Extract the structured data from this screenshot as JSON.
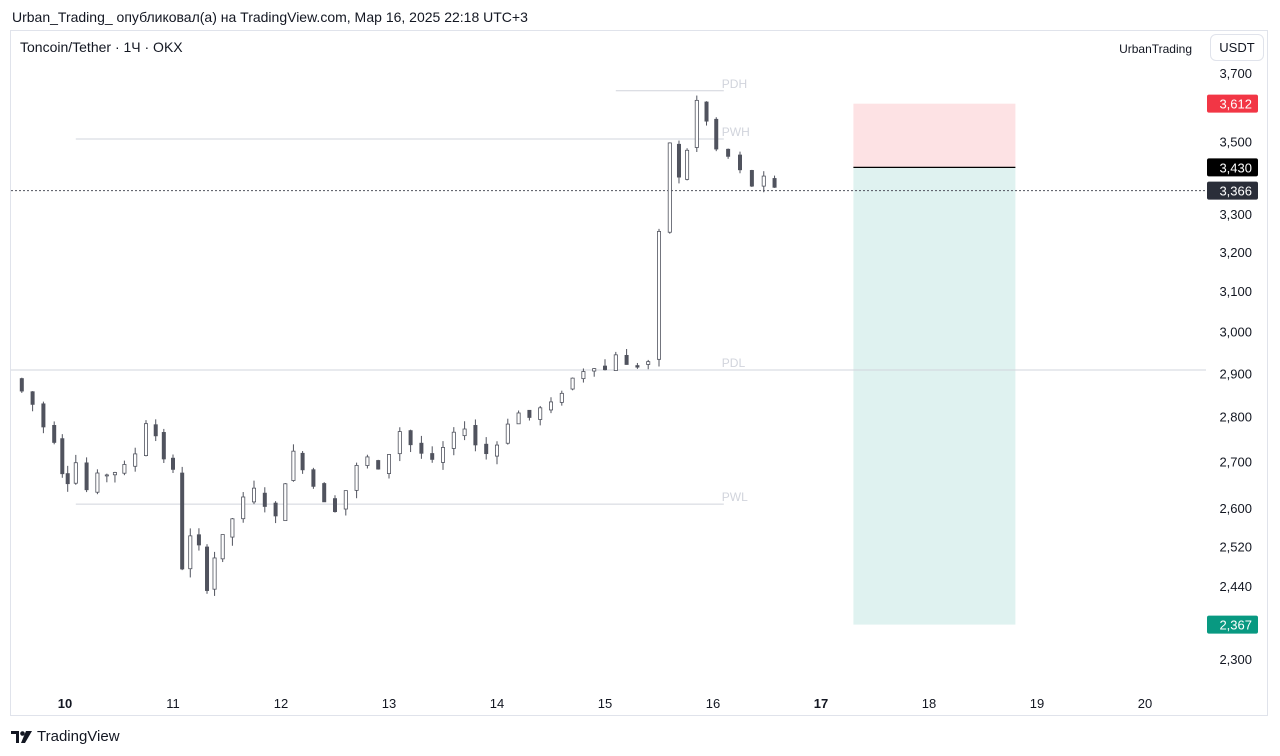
{
  "header": {
    "published_by": "Urban_Trading_ опубликовал(а) на TradingView.com, Мар 16, 2025 22:18 UTC+3"
  },
  "symbol": {
    "title": "Toncoin/Tether · 1Ч · OKX"
  },
  "author_label": "UrbanTrading",
  "currency_button": "USDT",
  "footer": {
    "brand": "TradingView"
  },
  "colors": {
    "stop_zone": "#fde2e4",
    "target_zone": "#dff2f0",
    "stop_tag": "#f23645",
    "target_tag": "#089981",
    "entry_tag": "#000000",
    "price_tag": "#2a2e39",
    "candle": "#50535e"
  },
  "chart_data": {
    "type": "candlestick",
    "title": "Toncoin/Tether · 1Ч · OKX",
    "y_axis": {
      "ticks": [
        {
          "label": "3,700",
          "value": 3700
        },
        {
          "label": "3,500",
          "value": 3500
        },
        {
          "label": "3,300",
          "value": 3300
        },
        {
          "label": "3,200",
          "value": 3200
        },
        {
          "label": "3,100",
          "value": 3100
        },
        {
          "label": "3,000",
          "value": 3000
        },
        {
          "label": "2,900",
          "value": 2900
        },
        {
          "label": "2,800",
          "value": 2800
        },
        {
          "label": "2,700",
          "value": 2700
        },
        {
          "label": "2,600",
          "value": 2600
        },
        {
          "label": "2,520",
          "value": 2520
        },
        {
          "label": "2,440",
          "value": 2440
        },
        {
          "label": "2,300",
          "value": 2300
        }
      ],
      "scale": "log"
    },
    "x_axis": {
      "ticks": [
        {
          "label": "10",
          "day": 10,
          "bold": true
        },
        {
          "label": "11",
          "day": 11,
          "bold": false
        },
        {
          "label": "12",
          "day": 12,
          "bold": false
        },
        {
          "label": "13",
          "day": 13,
          "bold": false
        },
        {
          "label": "14",
          "day": 14,
          "bold": false
        },
        {
          "label": "15",
          "day": 15,
          "bold": false
        },
        {
          "label": "16",
          "day": 16,
          "bold": false
        },
        {
          "label": "17",
          "day": 17,
          "bold": true
        },
        {
          "label": "18",
          "day": 18,
          "bold": false
        },
        {
          "label": "19",
          "day": 19,
          "bold": false
        },
        {
          "label": "20",
          "day": 20,
          "bold": false
        }
      ]
    },
    "series_close": [
      [
        9.55,
        2890
      ],
      [
        9.65,
        2860
      ],
      [
        9.75,
        2830
      ],
      [
        9.85,
        2780
      ],
      [
        9.95,
        2750
      ],
      [
        10.0,
        2680
      ],
      [
        10.05,
        2660
      ],
      [
        10.15,
        2700
      ],
      [
        10.25,
        2640
      ],
      [
        10.35,
        2670
      ],
      [
        10.5,
        2680
      ],
      [
        10.6,
        2690
      ],
      [
        10.7,
        2720
      ],
      [
        10.8,
        2790
      ],
      [
        10.88,
        2760
      ],
      [
        10.95,
        2710
      ],
      [
        11.05,
        2680
      ],
      [
        11.12,
        2480
      ],
      [
        11.2,
        2540
      ],
      [
        11.28,
        2520
      ],
      [
        11.35,
        2440
      ],
      [
        11.42,
        2500
      ],
      [
        11.5,
        2540
      ],
      [
        11.6,
        2580
      ],
      [
        11.7,
        2620
      ],
      [
        11.8,
        2640
      ],
      [
        11.9,
        2610
      ],
      [
        12.0,
        2580
      ],
      [
        12.08,
        2660
      ],
      [
        12.15,
        2720
      ],
      [
        12.25,
        2690
      ],
      [
        12.35,
        2650
      ],
      [
        12.45,
        2620
      ],
      [
        12.55,
        2600
      ],
      [
        12.65,
        2640
      ],
      [
        12.75,
        2690
      ],
      [
        12.85,
        2710
      ],
      [
        12.95,
        2680
      ],
      [
        13.05,
        2720
      ],
      [
        13.15,
        2770
      ],
      [
        13.25,
        2740
      ],
      [
        13.35,
        2720
      ],
      [
        13.45,
        2700
      ],
      [
        13.55,
        2730
      ],
      [
        13.65,
        2760
      ],
      [
        13.75,
        2780
      ],
      [
        13.85,
        2740
      ],
      [
        13.95,
        2720
      ],
      [
        14.05,
        2740
      ],
      [
        14.15,
        2790
      ],
      [
        14.25,
        2810
      ],
      [
        14.35,
        2800
      ],
      [
        14.45,
        2820
      ],
      [
        14.55,
        2830
      ],
      [
        14.65,
        2860
      ],
      [
        14.75,
        2890
      ],
      [
        14.85,
        2910
      ],
      [
        14.95,
        2920
      ],
      [
        15.05,
        2910
      ],
      [
        15.15,
        2950
      ],
      [
        15.25,
        2920
      ],
      [
        15.35,
        2920
      ],
      [
        15.45,
        2930
      ],
      [
        15.55,
        3250
      ],
      [
        15.65,
        3500
      ],
      [
        15.72,
        3400
      ],
      [
        15.8,
        3480
      ],
      [
        15.9,
        3620
      ],
      [
        15.98,
        3560
      ],
      [
        16.08,
        3480
      ],
      [
        16.2,
        3460
      ],
      [
        16.3,
        3420
      ],
      [
        16.42,
        3380
      ],
      [
        16.52,
        3400
      ],
      [
        16.62,
        3370
      ]
    ],
    "levels": [
      {
        "label": "PDH",
        "value": 3650
      },
      {
        "label": "PWH",
        "value": 3510
      },
      {
        "label": "PDL",
        "value": 2910
      },
      {
        "label": "PWL",
        "value": 2610
      }
    ],
    "position": {
      "type": "short",
      "stop": 3612,
      "entry": 3430,
      "target": 2367,
      "start_day": 17.3,
      "end_day": 18.8
    },
    "price_labels": {
      "stop": "3,612",
      "entry": "3,430",
      "current": "3,366",
      "target": "2,367"
    },
    "current_price": 3366
  }
}
